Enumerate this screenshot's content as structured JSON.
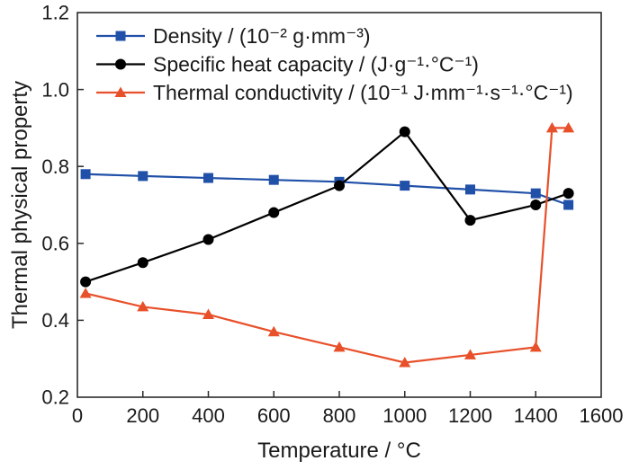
{
  "chart_data": {
    "type": "line",
    "title": "",
    "xlabel": "Temperature / °C",
    "ylabel": "Thermal physical property",
    "xlim": [
      0,
      1600
    ],
    "ylim": [
      0.2,
      1.2
    ],
    "xticks": [
      0,
      200,
      400,
      600,
      800,
      1000,
      1200,
      1400,
      1600
    ],
    "yticks": [
      0.2,
      0.4,
      0.6,
      0.8,
      1.0,
      1.2
    ],
    "grid": false,
    "legend_position": "upper-left-inside",
    "frame_color": "#2b2b2b",
    "text_color": "#1a1a1a",
    "series": [
      {
        "name": "Density / (10⁻² g·mm⁻³)",
        "color": "#2050a8",
        "marker": "square",
        "x": [
          25,
          200,
          400,
          600,
          800,
          1000,
          1200,
          1400,
          1500
        ],
        "y": [
          0.78,
          0.775,
          0.77,
          0.765,
          0.76,
          0.75,
          0.74,
          0.73,
          0.7
        ]
      },
      {
        "name": "Specific heat capacity / (J·g⁻¹·°C⁻¹)",
        "color": "#000000",
        "marker": "circle",
        "x": [
          25,
          200,
          400,
          600,
          800,
          1000,
          1200,
          1400,
          1500
        ],
        "y": [
          0.5,
          0.55,
          0.61,
          0.68,
          0.75,
          0.89,
          0.66,
          0.7,
          0.73
        ]
      },
      {
        "name": "Thermal conductivity / (10⁻¹ J·mm⁻¹·s⁻¹·°C⁻¹)",
        "color": "#e8502a",
        "marker": "triangle",
        "x": [
          25,
          200,
          400,
          600,
          800,
          1000,
          1200,
          1400,
          1450,
          1500
        ],
        "y": [
          0.47,
          0.435,
          0.415,
          0.37,
          0.33,
          0.29,
          0.31,
          0.33,
          0.9,
          0.9
        ]
      }
    ]
  }
}
